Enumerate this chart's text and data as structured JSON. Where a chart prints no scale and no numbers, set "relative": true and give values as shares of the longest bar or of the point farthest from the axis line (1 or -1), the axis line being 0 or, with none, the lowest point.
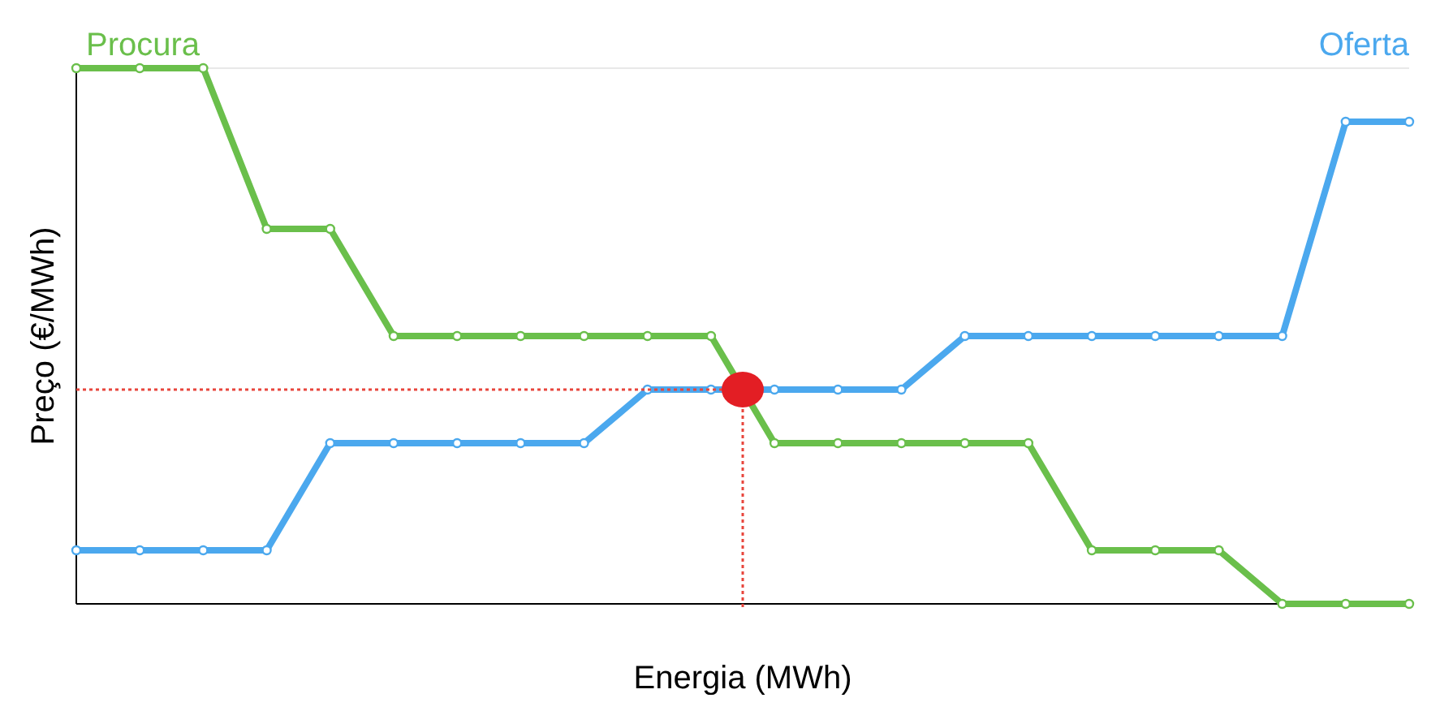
{
  "chart_data": {
    "type": "line",
    "relative": true,
    "xlabel": "Energia (MWh)",
    "ylabel": "Preço (€/MWh)",
    "categories": [
      null,
      null,
      null,
      null,
      null,
      null,
      null,
      null,
      null,
      null,
      null,
      null,
      null,
      null,
      null,
      null,
      null,
      null,
      null,
      null,
      null,
      null
    ],
    "series": [
      {
        "name": "Procura",
        "color": "#6abf4b",
        "values": [
          1,
          1,
          1,
          0.7,
          0.7,
          0.5,
          0.5,
          0.5,
          0.5,
          0.5,
          0.5,
          0.3,
          0.3,
          0.3,
          0.3,
          0.3,
          0.1,
          0.1,
          0.1,
          0,
          0,
          0
        ]
      },
      {
        "name": "Oferta",
        "color": "#4ba8ee",
        "values": [
          0.1,
          0.1,
          0.1,
          0.1,
          0.3,
          0.3,
          0.3,
          0.3,
          0.3,
          0.4,
          0.4,
          0.4,
          0.4,
          0.4,
          0.5,
          0.5,
          0.5,
          0.5,
          0.5,
          0.5,
          0.9,
          0.9
        ]
      }
    ],
    "ref_lines": [
      {
        "axis": "y",
        "value": 0.4,
        "color": "#e8453c",
        "line_style": "dotted"
      }
    ],
    "marker": "circle",
    "line_style": "solid",
    "grid": false,
    "legend": false
  }
}
